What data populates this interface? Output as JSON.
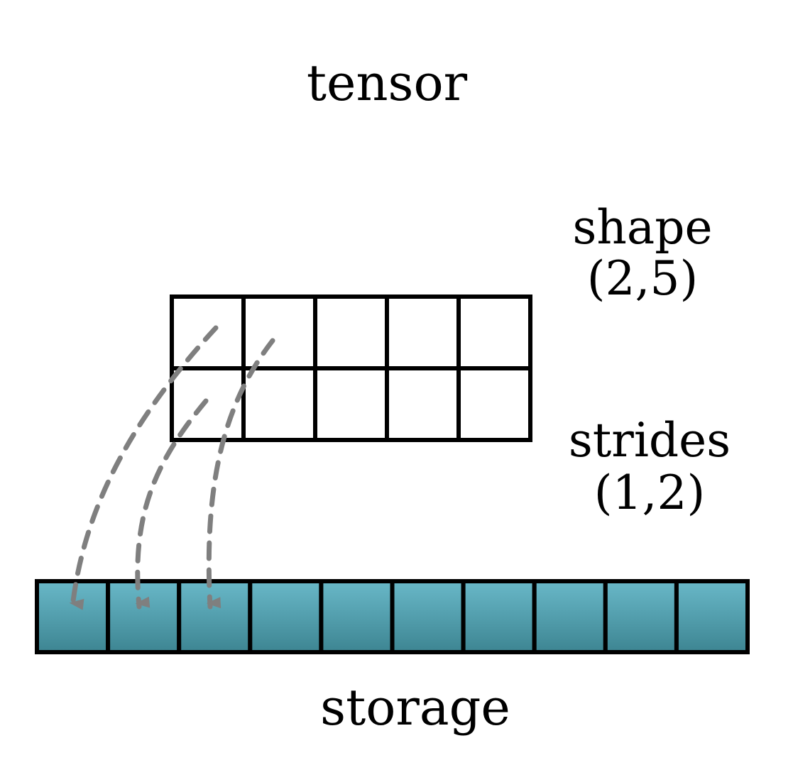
{
  "title": "tensor",
  "shape": {
    "label": "shape",
    "value": "(2,5)",
    "rows": 2,
    "cols": 5
  },
  "strides": {
    "label": "strides",
    "value": "(1,2)"
  },
  "storage": {
    "label": "storage",
    "cells": 10
  },
  "mappings": [
    {
      "from": [
        0,
        0
      ],
      "to": 0
    },
    {
      "from": [
        1,
        0
      ],
      "to": 1
    },
    {
      "from": [
        0,
        1
      ],
      "to": 2
    }
  ],
  "colors": {
    "storage_fill_top": "#69b8c8",
    "storage_fill_bottom": "#3d8592",
    "outline": "#000000",
    "arrow": "#7f7f7f"
  }
}
